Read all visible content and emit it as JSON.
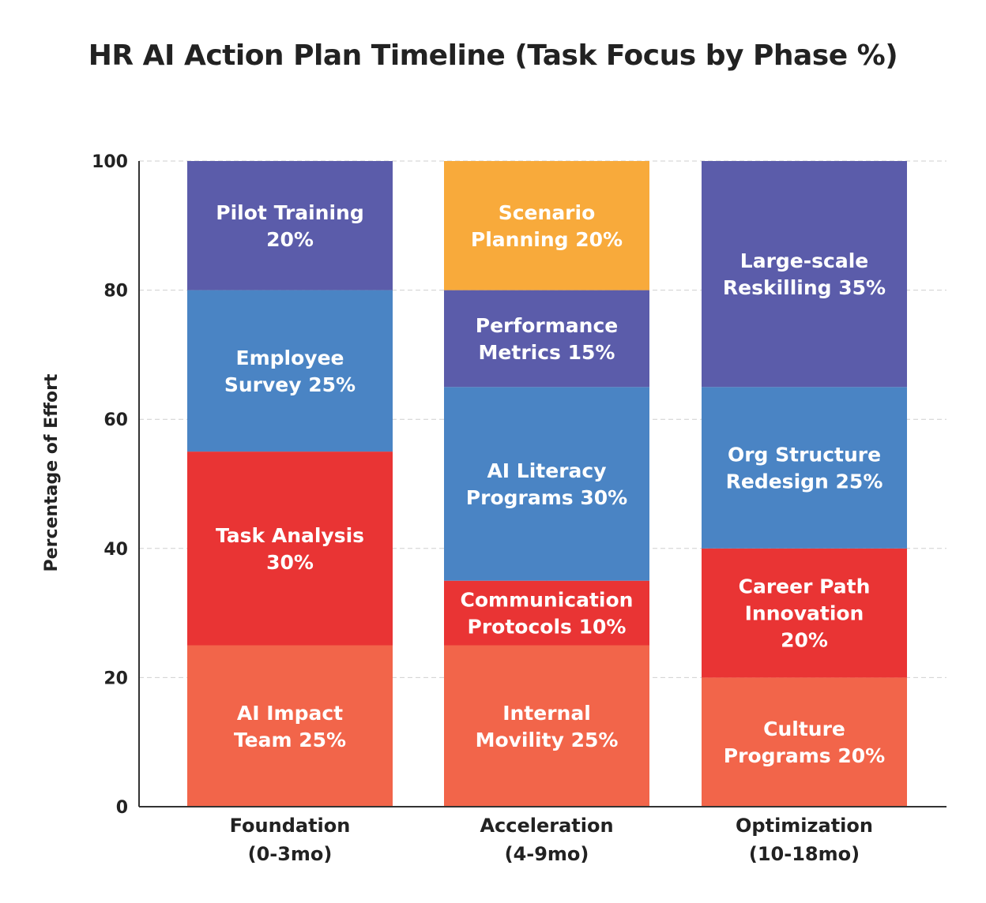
{
  "chart_data": {
    "type": "bar",
    "stacked": true,
    "title": "HR AI Action Plan Timeline (Task Focus by Phase %)",
    "ylabel": "Percentage of Effort",
    "xlabel": "",
    "ylim": [
      0,
      100
    ],
    "yticks": [
      "0",
      "20",
      "40",
      "60",
      "80",
      "100"
    ],
    "grid": true,
    "categories": [
      [
        "Foundation",
        "(0-3mo)"
      ],
      [
        "Acceleration",
        "(4-9mo)"
      ],
      [
        "Optimization",
        "(10-18mo)"
      ]
    ],
    "stacks": [
      [
        {
          "label": [
            "AI Impact",
            "Team 25%"
          ],
          "value": 25,
          "color": "#f2654a"
        },
        {
          "label": [
            "Task Analysis",
            "30%"
          ],
          "value": 30,
          "color": "#e93434"
        },
        {
          "label": [
            "Employee",
            "Survey 25%"
          ],
          "value": 25,
          "color": "#4a84c4"
        },
        {
          "label": [
            "Pilot Training",
            "20%"
          ],
          "value": 20,
          "color": "#5b5caa"
        }
      ],
      [
        {
          "label": [
            "Internal",
            "Movility 25%"
          ],
          "value": 25,
          "color": "#f2654a"
        },
        {
          "label": [
            "Communication",
            "Protocols 10%"
          ],
          "value": 10,
          "color": "#e93434"
        },
        {
          "label": [
            "AI Literacy",
            "Programs 30%"
          ],
          "value": 30,
          "color": "#4a84c4"
        },
        {
          "label": [
            "Performance",
            "Metrics 15%"
          ],
          "value": 15,
          "color": "#5b5caa"
        },
        {
          "label": [
            "Scenario",
            "Planning 20%"
          ],
          "value": 20,
          "color": "#f8aa3b"
        }
      ],
      [
        {
          "label": [
            "Culture",
            "Programs 20%"
          ],
          "value": 20,
          "color": "#f2654a"
        },
        {
          "label": [
            "Career Path",
            "Innovation",
            "20%"
          ],
          "value": 20,
          "color": "#e93434"
        },
        {
          "label": [
            "Org Structure",
            "Redesign 25%"
          ],
          "value": 25,
          "color": "#4a84c4"
        },
        {
          "label": [
            "Large-scale",
            "Reskilling 35%"
          ],
          "value": 35,
          "color": "#5b5caa"
        }
      ]
    ]
  }
}
